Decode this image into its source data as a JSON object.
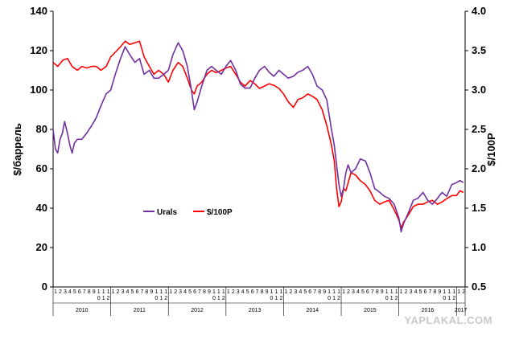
{
  "chart_data": {
    "type": "line",
    "ylabel_left": "$/баррель",
    "ylabel_right": "$/100Р",
    "y_left": {
      "min": 0,
      "max": 140,
      "ticks": [
        "0",
        "20",
        "40",
        "60",
        "80",
        "100",
        "120",
        "140"
      ]
    },
    "y_right": {
      "min": 0.5,
      "max": 4.0,
      "ticks": [
        "0.5",
        "1.0",
        "1.5",
        "2.0",
        "2.5",
        "3.0",
        "3.5",
        "4.0"
      ]
    },
    "years": [
      "2010",
      "2011",
      "2012",
      "2013",
      "2014",
      "2015",
      "2016",
      "2017"
    ],
    "month_labels_top": [
      "1",
      "2",
      "3",
      "4",
      "5",
      "6",
      "7",
      "8",
      "9",
      "1",
      "1",
      "1"
    ],
    "month_labels_bottom": [
      "",
      "",
      "",
      "",
      "",
      "",
      "",
      "",
      "",
      "0",
      "1",
      "2"
    ],
    "grid": false,
    "legend_position": "center-left",
    "series": [
      {
        "name": "Urals",
        "axis": "left",
        "color": "#7030a0",
        "x": [
          2010.0,
          2010.04,
          2010.08,
          2010.12,
          2010.16,
          2010.2,
          2010.25,
          2010.29,
          2010.33,
          2010.37,
          2010.42,
          2010.5,
          2010.58,
          2010.67,
          2010.75,
          2010.83,
          2010.92,
          2011.0,
          2011.08,
          2011.17,
          2011.25,
          2011.33,
          2011.42,
          2011.5,
          2011.58,
          2011.67,
          2011.75,
          2011.83,
          2011.92,
          2012.0,
          2012.08,
          2012.17,
          2012.25,
          2012.33,
          2012.4,
          2012.45,
          2012.5,
          2012.58,
          2012.67,
          2012.75,
          2012.83,
          2012.92,
          2013.0,
          2013.08,
          2013.17,
          2013.25,
          2013.33,
          2013.42,
          2013.5,
          2013.58,
          2013.67,
          2013.75,
          2013.83,
          2013.92,
          2014.0,
          2014.08,
          2014.17,
          2014.25,
          2014.33,
          2014.42,
          2014.5,
          2014.58,
          2014.67,
          2014.75,
          2014.83,
          2014.88,
          2014.92,
          2014.96,
          2015.0,
          2015.04,
          2015.08,
          2015.12,
          2015.17,
          2015.25,
          2015.33,
          2015.42,
          2015.5,
          2015.58,
          2015.67,
          2015.75,
          2015.83,
          2015.92,
          2016.0,
          2016.04,
          2016.08,
          2016.17,
          2016.25,
          2016.33,
          2016.42,
          2016.5,
          2016.58,
          2016.67,
          2016.75,
          2016.83,
          2016.92,
          2017.0,
          2017.06,
          2017.12
        ],
        "values": [
          80,
          70,
          68,
          75,
          78,
          84,
          78,
          72,
          68,
          73,
          75,
          75,
          78,
          82,
          86,
          92,
          98,
          100,
          108,
          116,
          122,
          118,
          114,
          116,
          108,
          110,
          106,
          106,
          108,
          110,
          118,
          124,
          120,
          112,
          100,
          90,
          94,
          102,
          110,
          112,
          110,
          108,
          112,
          115,
          110,
          103,
          101,
          101,
          106,
          110,
          112,
          109,
          107,
          110,
          108,
          106,
          107,
          109,
          110,
          112,
          108,
          102,
          100,
          95,
          80,
          72,
          62,
          52,
          46,
          50,
          58,
          62,
          58,
          60,
          65,
          64,
          58,
          50,
          48,
          46,
          45,
          42,
          35,
          28,
          32,
          38,
          44,
          45,
          48,
          44,
          42,
          45,
          48,
          46,
          52,
          53,
          54,
          53
        ]
      },
      {
        "name": "$/100Р",
        "axis": "right",
        "color": "#ff0000",
        "x": [
          2010.0,
          2010.08,
          2010.17,
          2010.25,
          2010.33,
          2010.42,
          2010.5,
          2010.58,
          2010.67,
          2010.75,
          2010.83,
          2010.92,
          2011.0,
          2011.08,
          2011.17,
          2011.25,
          2011.33,
          2011.42,
          2011.5,
          2011.58,
          2011.67,
          2011.75,
          2011.83,
          2011.92,
          2012.0,
          2012.08,
          2012.17,
          2012.25,
          2012.33,
          2012.4,
          2012.45,
          2012.5,
          2012.58,
          2012.67,
          2012.75,
          2012.83,
          2012.92,
          2013.0,
          2013.08,
          2013.17,
          2013.25,
          2013.33,
          2013.42,
          2013.5,
          2013.58,
          2013.67,
          2013.75,
          2013.83,
          2013.92,
          2014.0,
          2014.08,
          2014.17,
          2014.25,
          2014.33,
          2014.42,
          2014.5,
          2014.58,
          2014.67,
          2014.75,
          2014.83,
          2014.88,
          2014.92,
          2014.96,
          2015.0,
          2015.04,
          2015.08,
          2015.12,
          2015.17,
          2015.25,
          2015.33,
          2015.42,
          2015.5,
          2015.58,
          2015.67,
          2015.75,
          2015.83,
          2015.92,
          2016.0,
          2016.04,
          2016.08,
          2016.17,
          2016.25,
          2016.33,
          2016.42,
          2016.5,
          2016.58,
          2016.67,
          2016.75,
          2016.83,
          2016.92,
          2017.0,
          2017.06,
          2017.12
        ],
        "values": [
          3.35,
          3.3,
          3.38,
          3.4,
          3.3,
          3.25,
          3.3,
          3.28,
          3.3,
          3.3,
          3.25,
          3.3,
          3.42,
          3.48,
          3.55,
          3.62,
          3.58,
          3.6,
          3.62,
          3.42,
          3.3,
          3.2,
          3.25,
          3.2,
          3.1,
          3.25,
          3.35,
          3.3,
          3.15,
          3.0,
          2.95,
          3.05,
          3.1,
          3.2,
          3.25,
          3.22,
          3.25,
          3.28,
          3.3,
          3.2,
          3.1,
          3.05,
          3.12,
          3.08,
          3.02,
          3.05,
          3.08,
          3.06,
          3.02,
          2.95,
          2.85,
          2.78,
          2.88,
          2.9,
          2.95,
          2.92,
          2.88,
          2.75,
          2.55,
          2.3,
          2.1,
          1.75,
          1.52,
          1.58,
          1.75,
          1.72,
          1.82,
          1.95,
          1.92,
          1.85,
          1.8,
          1.72,
          1.6,
          1.55,
          1.58,
          1.6,
          1.48,
          1.35,
          1.25,
          1.32,
          1.42,
          1.52,
          1.55,
          1.55,
          1.58,
          1.6,
          1.55,
          1.58,
          1.62,
          1.66,
          1.66,
          1.72,
          1.7
        ]
      }
    ]
  },
  "watermark": "YAPLAKAL.COM"
}
